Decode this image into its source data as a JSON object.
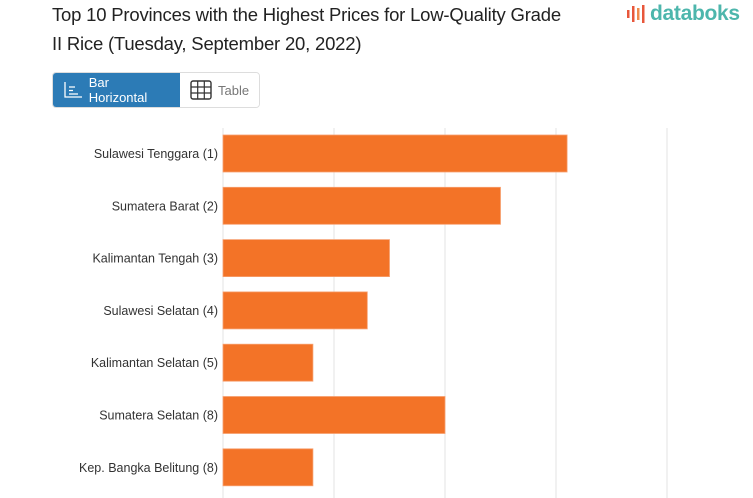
{
  "header": {
    "title": "Top 10 Provinces with the Highest Prices for Low-Quality Grade II Rice (Tuesday, September 20, 2022)",
    "logo_text": "databoks"
  },
  "view_toggle": {
    "options": [
      {
        "label": "Bar Horizontal",
        "icon": "bar-chart-horizontal-icon",
        "active": true
      },
      {
        "label": "Table",
        "icon": "table-grid-icon",
        "active": false
      }
    ]
  },
  "colors": {
    "bar": "#f37327",
    "active_toggle": "#2c7bb6",
    "logo": "#4db6ac",
    "logo_accent": "#e8573b"
  },
  "chart_data": {
    "type": "bar",
    "orientation": "horizontal",
    "title": "Top 10 Provinces with the Highest Prices for Low-Quality Grade II Rice (Tuesday, September 20, 2022)",
    "categories": [
      "Sulawesi Tenggara (1)",
      "Sumatera Barat (2)",
      "Kalimantan Tengah (3)",
      "Sulawesi Selatan (4)",
      "Kalimantan Selatan (5)",
      "Sumatera Selatan (8)",
      "Kep. Bangka Belitung (8)"
    ],
    "values": [
      3.1,
      2.5,
      1.5,
      1.3,
      0.81,
      2.0,
      0.81
    ],
    "xlim": [
      0,
      4
    ],
    "xlabel": "",
    "ylabel": "",
    "grid": "vertical",
    "axis_tick_labels_visible": false
  }
}
